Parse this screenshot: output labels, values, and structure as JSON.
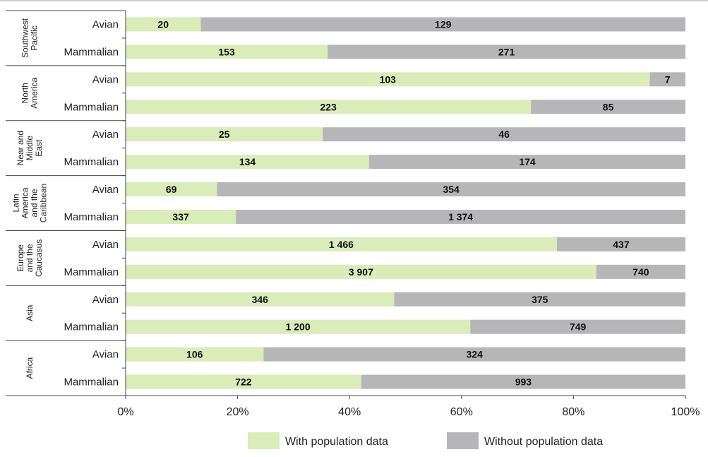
{
  "chart_data": {
    "type": "bar",
    "orientation": "horizontal",
    "stacked": "percent",
    "regions": [
      {
        "name": "Southwest\nPacific",
        "rows": [
          {
            "category": "Avian",
            "with": 20,
            "without": 129,
            "with_label": "20",
            "without_label": "129"
          },
          {
            "category": "Mammalian",
            "with": 153,
            "without": 271,
            "with_label": "153",
            "without_label": "271"
          }
        ]
      },
      {
        "name": "North\nAmerica",
        "rows": [
          {
            "category": "Avian",
            "with": 103,
            "without": 7,
            "with_label": "103",
            "without_label": "7"
          },
          {
            "category": "Mammalian",
            "with": 223,
            "without": 85,
            "with_label": "223",
            "without_label": "85"
          }
        ]
      },
      {
        "name": "Near and\nMiddle\nEast",
        "rows": [
          {
            "category": "Avian",
            "with": 25,
            "without": 46,
            "with_label": "25",
            "without_label": "46"
          },
          {
            "category": "Mammalian",
            "with": 134,
            "without": 174,
            "with_label": "134",
            "without_label": "174"
          }
        ]
      },
      {
        "name": "Latin\nAmerica\nand the\nCaribbean",
        "rows": [
          {
            "category": "Avian",
            "with": 69,
            "without": 354,
            "with_label": "69",
            "without_label": "354"
          },
          {
            "category": "Mammalian",
            "with": 337,
            "without": 1374,
            "with_label": "337",
            "without_label": "1 374"
          }
        ]
      },
      {
        "name": "Europe\nand the\nCaucasus",
        "rows": [
          {
            "category": "Avian",
            "with": 1466,
            "without": 437,
            "with_label": "1 466",
            "without_label": "437"
          },
          {
            "category": "Mammalian",
            "with": 3907,
            "without": 740,
            "with_label": "3 907",
            "without_label": "740"
          }
        ]
      },
      {
        "name": "Asia",
        "rows": [
          {
            "category": "Avian",
            "with": 346,
            "without": 375,
            "with_label": "346",
            "without_label": "375"
          },
          {
            "category": "Mammalian",
            "with": 1200,
            "without": 749,
            "with_label": "1 200",
            "without_label": "749"
          }
        ]
      },
      {
        "name": "Africa",
        "rows": [
          {
            "category": "Avian",
            "with": 106,
            "without": 324,
            "with_label": "106",
            "without_label": "324"
          },
          {
            "category": "Mammalian",
            "with": 722,
            "without": 993,
            "with_label": "722",
            "without_label": "993"
          }
        ]
      }
    ],
    "series": [
      {
        "name": "With population data",
        "color": "#d9ecb9"
      },
      {
        "name": "Without population data",
        "color": "#b6b6b8"
      }
    ],
    "xlim": [
      0,
      100
    ],
    "x_ticks": [
      "0%",
      "20%",
      "40%",
      "60%",
      "80%",
      "100%"
    ],
    "legend_position": "bottom",
    "grid": false
  }
}
